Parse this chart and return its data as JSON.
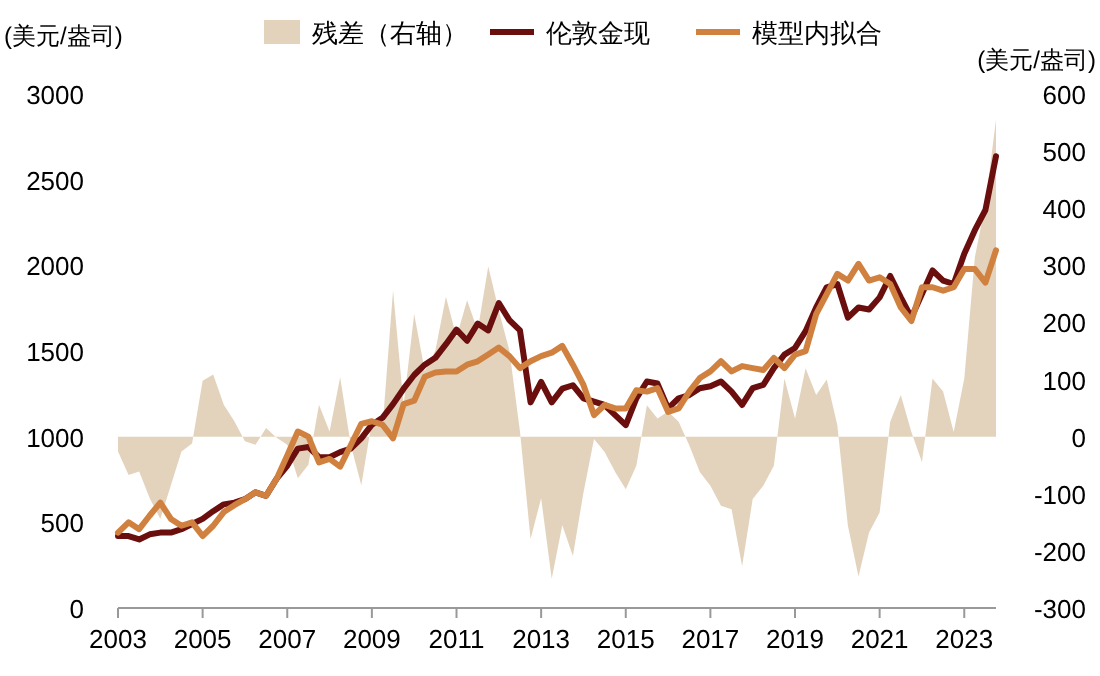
{
  "chart_data": {
    "type": "line",
    "ylabel": "(美元/盎司)",
    "y2label": "(美元/盎司)",
    "legend": "top",
    "grid": false,
    "marker": "none",
    "line_style": "solid",
    "x": [
      2003,
      2003.25,
      2003.5,
      2003.75,
      2004,
      2004.25,
      2004.5,
      2004.75,
      2005,
      2005.25,
      2005.5,
      2005.75,
      2006,
      2006.25,
      2006.5,
      2006.75,
      2007,
      2007.25,
      2007.5,
      2007.75,
      2008,
      2008.25,
      2008.5,
      2008.75,
      2009,
      2009.25,
      2009.5,
      2009.75,
      2010,
      2010.25,
      2010.5,
      2010.75,
      2011,
      2011.25,
      2011.5,
      2011.75,
      2012,
      2012.25,
      2012.5,
      2012.75,
      2013,
      2013.25,
      2013.5,
      2013.75,
      2014,
      2014.25,
      2014.5,
      2014.75,
      2015,
      2015.25,
      2015.5,
      2015.75,
      2016,
      2016.25,
      2016.5,
      2016.75,
      2017,
      2017.25,
      2017.5,
      2017.75,
      2018,
      2018.25,
      2018.5,
      2018.75,
      2019,
      2019.25,
      2019.5,
      2019.75,
      2020,
      2020.25,
      2020.5,
      2020.75,
      2021,
      2021.25,
      2021.5,
      2021.75,
      2022,
      2022.25,
      2022.5,
      2022.75,
      2023,
      2023.25,
      2023.5,
      2023.75
    ],
    "xlim": [
      2003,
      2023.75
    ],
    "xticks": [
      2003,
      2005,
      2007,
      2009,
      2011,
      2013,
      2015,
      2017,
      2019,
      2021,
      2023
    ],
    "ylim": [
      0,
      3000
    ],
    "yticks": [
      0,
      500,
      1000,
      1500,
      2000,
      2500,
      3000
    ],
    "y2lim": [
      -300,
      600
    ],
    "y2ticks": [
      -300,
      -200,
      -100,
      0,
      100,
      200,
      300,
      400,
      500,
      600
    ],
    "series": [
      {
        "name": "残差（右轴）",
        "type": "area",
        "axis": "y2",
        "color": "#e3d3bd",
        "values": [
          -26,
          -67,
          -61,
          -108,
          -144,
          -85,
          -26,
          -12,
          98,
          109,
          56,
          27,
          -8,
          -14,
          15,
          -2,
          -14,
          -73,
          -49,
          56,
          9,
          104,
          -14,
          -85,
          27,
          15,
          256,
          56,
          215,
          115,
          151,
          245,
          174,
          239,
          186,
          298,
          221,
          151,
          9,
          -179,
          -108,
          -249,
          -155,
          -209,
          -98,
          -4,
          -27,
          -62,
          -92,
          -51,
          55,
          32,
          44,
          26,
          -15,
          -62,
          -86,
          -121,
          -127,
          -227,
          -109,
          -86,
          -51,
          102,
          32,
          120,
          73,
          100,
          20,
          -156,
          -245,
          -168,
          -133,
          26,
          73,
          8,
          -45,
          102,
          79,
          8,
          102,
          314,
          408,
          555
        ]
      },
      {
        "name": "伦敦金现",
        "color": "#6b0e0e",
        "values": [
          420,
          420,
          400,
          430,
          440,
          440,
          460,
          490,
          520,
          565,
          605,
          615,
          635,
          675,
          655,
          755,
          830,
          930,
          940,
          880,
          880,
          910,
          930,
          990,
          1070,
          1110,
          1190,
          1280,
          1360,
          1420,
          1460,
          1540,
          1625,
          1560,
          1660,
          1620,
          1780,
          1680,
          1620,
          1200,
          1320,
          1200,
          1280,
          1300,
          1224,
          1204,
          1185,
          1126,
          1067,
          1224,
          1322,
          1310,
          1165,
          1224,
          1243,
          1283,
          1294,
          1322,
          1263,
          1185,
          1283,
          1302,
          1400,
          1479,
          1518,
          1616,
          1754,
          1872,
          1891,
          1695,
          1754,
          1742,
          1813,
          1938,
          1813,
          1695,
          1832,
          1970,
          1911,
          1891,
          2068,
          2205,
          2323,
          2637
        ]
      },
      {
        "name": "模型内拟合",
        "color": "#d0813f",
        "values": [
          440,
          500,
          460,
          540,
          615,
          520,
          480,
          500,
          420,
          480,
          560,
          600,
          635,
          675,
          655,
          755,
          890,
          1030,
          1000,
          850,
          870,
          825,
          950,
          1075,
          1090,
          1070,
          990,
          1190,
          1210,
          1350,
          1375,
          1380,
          1380,
          1420,
          1440,
          1480,
          1520,
          1470,
          1400,
          1440,
          1470,
          1490,
          1530,
          1420,
          1302,
          1126,
          1185,
          1165,
          1165,
          1271,
          1263,
          1283,
          1145,
          1165,
          1263,
          1342,
          1381,
          1440,
          1381,
          1412,
          1400,
          1389,
          1459,
          1400,
          1479,
          1499,
          1715,
          1832,
          1950,
          1911,
          2009,
          1911,
          1930,
          1891,
          1754,
          1675,
          1872,
          1872,
          1852,
          1872,
          1978,
          1978,
          1899,
          2088
        ]
      }
    ]
  }
}
